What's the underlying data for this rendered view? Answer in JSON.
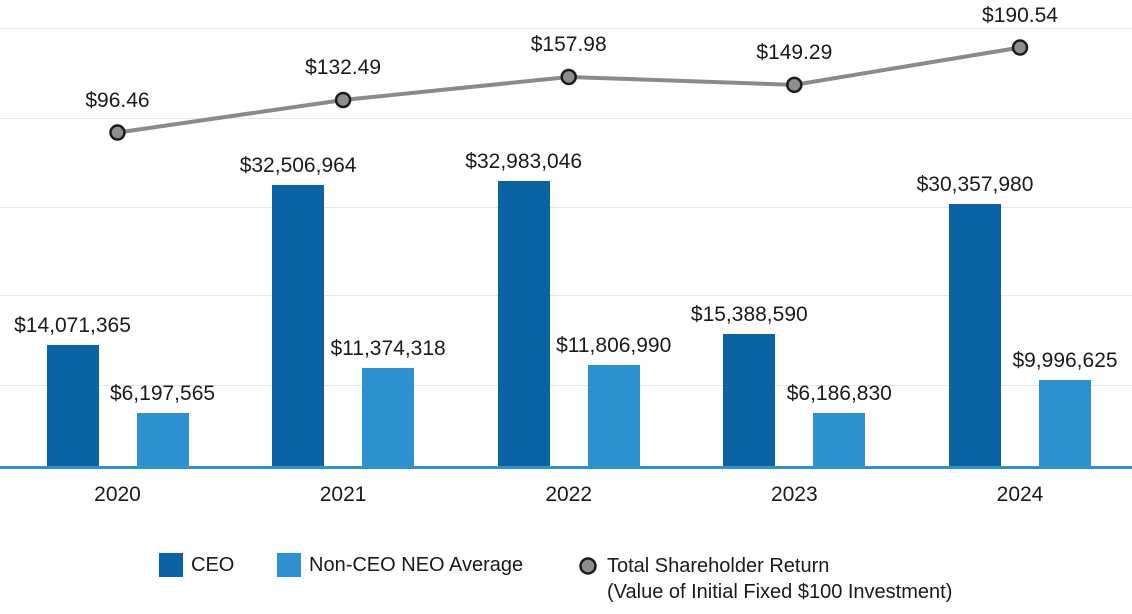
{
  "chart_data": {
    "type": "combo bar+line (pay versus performance)",
    "categories": [
      "2020",
      "2021",
      "2022",
      "2023",
      "2024"
    ],
    "series": [
      {
        "name": "CEO",
        "type": "bar",
        "color": "#0b63a3",
        "values": [
          14071365,
          32506964,
          32983046,
          15388590,
          30357980
        ],
        "labels": [
          "$14,071,365",
          "$32,506,964",
          "$32,983,046",
          "$15,388,590",
          "$30,357,980"
        ]
      },
      {
        "name": "Non-CEO NEO Average",
        "type": "bar",
        "color": "#2d91d0",
        "values": [
          6197565,
          11374318,
          11806990,
          6186830,
          9996625
        ],
        "labels": [
          "$6,197,565",
          "$11,374,318",
          "$11,806,990",
          "$6,186,830",
          "$9,996,625"
        ]
      },
      {
        "name": "Total Shareholder Return (Value of Initial Fixed $100 Investment)",
        "type": "line",
        "color": "#8a8a8a",
        "marker_fill": "#8e8e8e",
        "marker_stroke": "#1c1c1c",
        "values": [
          96.46,
          132.49,
          157.98,
          149.29,
          190.54
        ],
        "labels": [
          "$96.46",
          "$132.49",
          "$157.98",
          "$149.29",
          "$190.54"
        ]
      }
    ],
    "legend": {
      "position": "bottom",
      "items": [
        {
          "label": "CEO",
          "swatch": "square",
          "color": "#0b63a3"
        },
        {
          "label": "Non-CEO NEO Average",
          "swatch": "square",
          "color": "#2d91d0"
        },
        {
          "label_line1": "Total Shareholder Return",
          "label_line2": "(Value of Initial Fixed $100 Investment)",
          "swatch": "circle",
          "color": "#8e8e8e",
          "stroke": "#1c1c1c"
        }
      ]
    },
    "axes": {
      "x_tick_labels": [
        "2020",
        "2021",
        "2022",
        "2023",
        "2024"
      ],
      "y_axis_labels_visible": false,
      "gridlines": true,
      "axis_line_color": "#2e92d2"
    },
    "colors": {
      "ceo_bar": "#0b63a3",
      "neo_bar": "#2d91d0",
      "tsr_line": "#8a8a8a",
      "tsr_marker_fill": "#8e8e8e",
      "tsr_marker_stroke": "#1c1c1c",
      "gridline": "#e7e7e7",
      "axis_baseline": "#2e92d2",
      "text": "#1a1a1a"
    }
  }
}
